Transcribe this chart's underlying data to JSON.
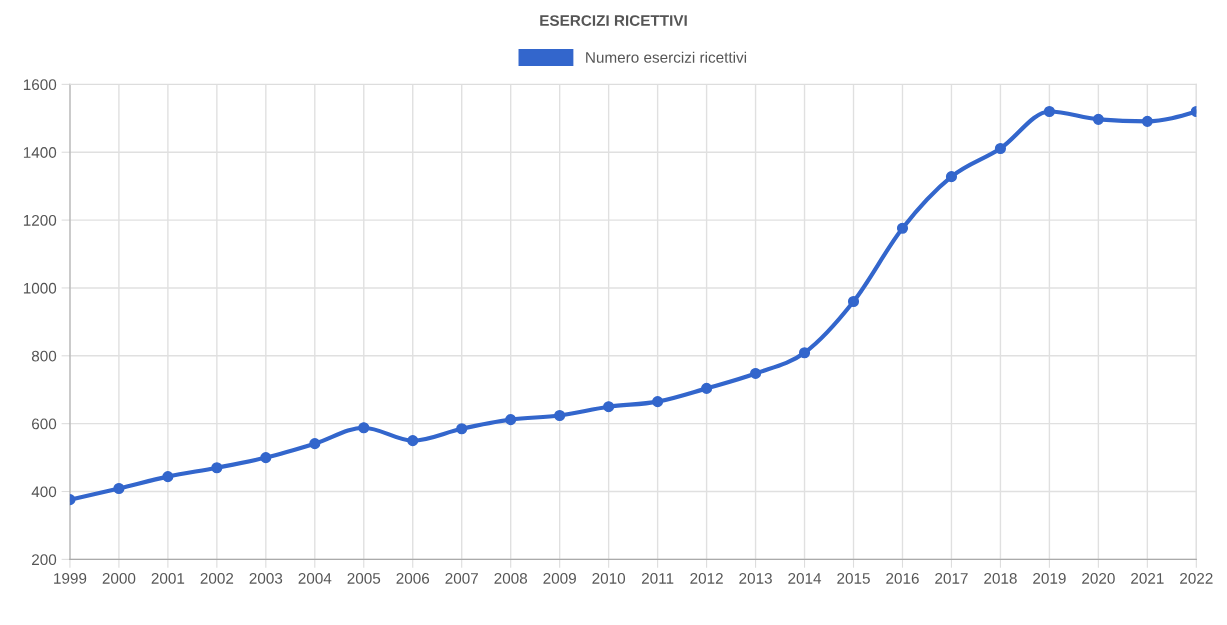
{
  "chart_data": {
    "type": "line",
    "title": "ESERCIZI RICETTIVI",
    "categories": [
      "1999",
      "2000",
      "2001",
      "2002",
      "2003",
      "2004",
      "2005",
      "2006",
      "2007",
      "2008",
      "2009",
      "2010",
      "2011",
      "2012",
      "2013",
      "2014",
      "2015",
      "2016",
      "2017",
      "2018",
      "2019",
      "2020",
      "2021",
      "2022"
    ],
    "series": [
      {
        "name": "Numero esercizi ricettivi",
        "color": "#3366cc",
        "values": [
          376,
          409,
          444,
          470,
          500,
          541,
          588,
          550,
          585,
          612,
          624,
          650,
          665,
          704,
          748,
          809,
          960,
          1176,
          1328,
          1411,
          1520,
          1497,
          1491,
          1520
        ]
      }
    ],
    "ylim": [
      200,
      1600
    ],
    "yticks": [
      200,
      400,
      600,
      800,
      1000,
      1200,
      1400,
      1600
    ],
    "grid": true,
    "legend": "top",
    "marker": "circle",
    "line_style": "solid"
  }
}
